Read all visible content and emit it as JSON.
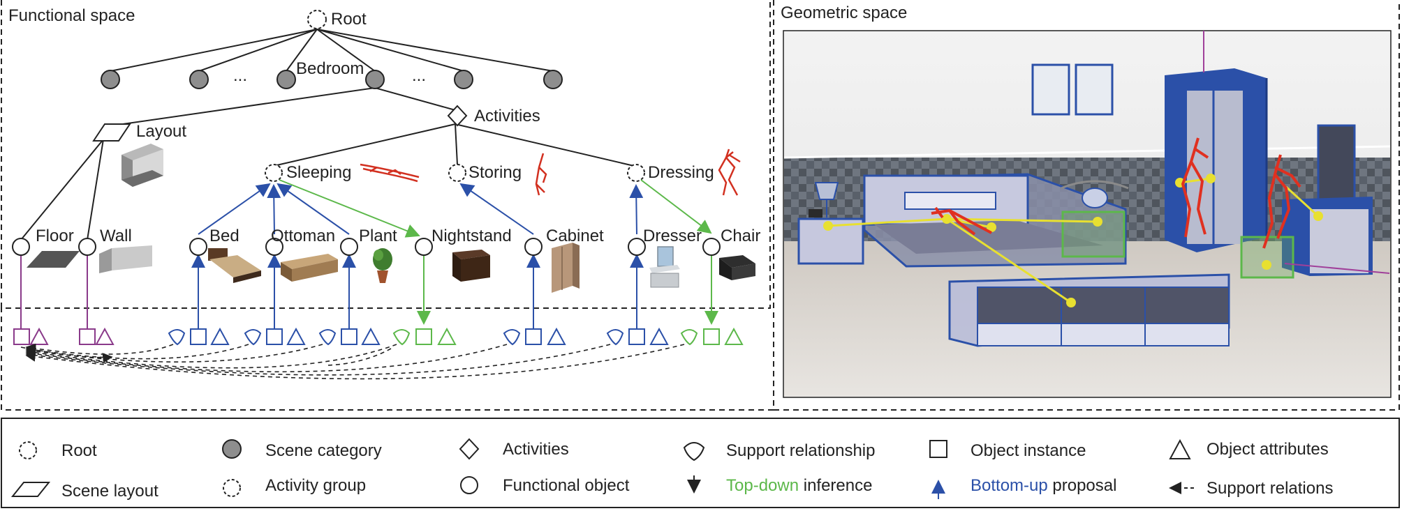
{
  "panels": {
    "functional_title": "Functional space",
    "geometric_title": "Geometric space"
  },
  "tree": {
    "root": "Root",
    "ellipsis_left": "...",
    "ellipsis_right": "...",
    "bedroom": "Bedroom",
    "layout": "Layout",
    "activities": "Activities",
    "groups": [
      "Sleeping",
      "Storing",
      "Dressing"
    ],
    "objects": [
      "Floor",
      "Wall",
      "Bed",
      "Ottoman",
      "Plant",
      "Nightstand",
      "Cabinet",
      "Dresser",
      "Chair"
    ]
  },
  "legend": {
    "root": "Root",
    "scene_category": "Scene category",
    "activities": "Activities",
    "support_relationship": "Support relationship",
    "object_instance": "Object instance",
    "object_attributes": "Object attributes",
    "scene_layout": "Scene layout",
    "activity_group": "Activity group",
    "functional_object": "Functional object",
    "top_down_word": "Top-down",
    "top_down_rest": "inference",
    "bottom_up_word": "Bottom-up",
    "bottom_up_rest": "proposal",
    "support_relations": "Support relations"
  },
  "colors": {
    "purple": "#8a3a8a",
    "blue": "#2b50a8",
    "green": "#5cb84a",
    "red": "#e03020",
    "yellow": "#e8e030",
    "scene_gray": "#8e8e8e"
  }
}
